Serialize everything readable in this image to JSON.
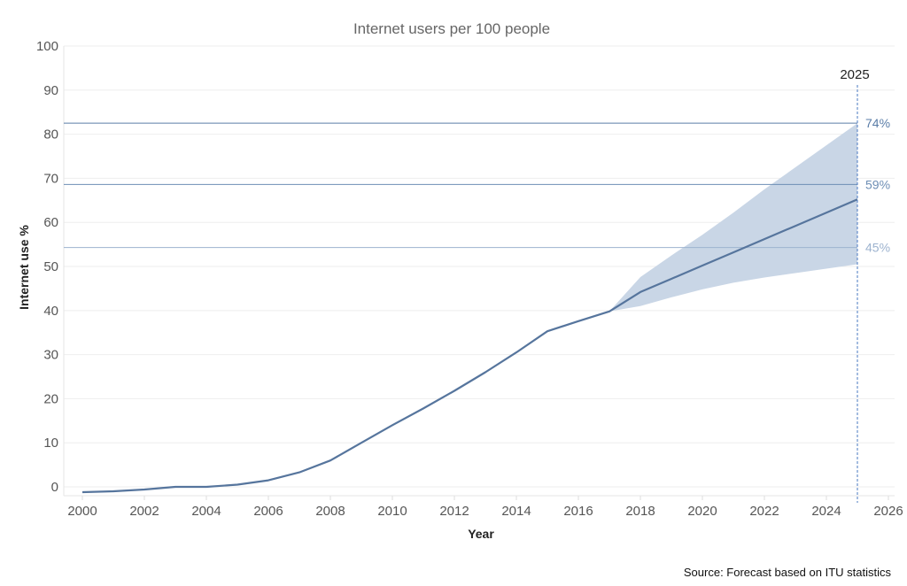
{
  "chart_data": {
    "type": "line",
    "title": "Internet users per 100 people",
    "xlabel": "Year",
    "ylabel": "Internet use %",
    "xlim": [
      1999.4,
      2026.2
    ],
    "ylim": [
      -2,
      100
    ],
    "x_ticks": [
      "2000",
      "2002",
      "2004",
      "2006",
      "2008",
      "2010",
      "2012",
      "2014",
      "2016",
      "2018",
      "2020",
      "2022",
      "2024",
      "2026"
    ],
    "y_ticks": [
      "0",
      "10",
      "20",
      "30",
      "40",
      "50",
      "60",
      "70",
      "80",
      "90",
      "100"
    ],
    "grid": "horizontal",
    "series": [
      {
        "values": [
          [
            2000,
            -1.2
          ],
          [
            2001,
            -1.0
          ],
          [
            2002,
            -0.6
          ],
          [
            2003,
            0.0
          ],
          [
            2004,
            0.0
          ],
          [
            2005,
            0.5
          ],
          [
            2006,
            1.5
          ],
          [
            2007,
            3.3
          ],
          [
            2008,
            6.0
          ],
          [
            2009,
            10.0
          ],
          [
            2010,
            14.0
          ],
          [
            2011,
            17.8
          ],
          [
            2012,
            21.8
          ],
          [
            2013,
            26.0
          ],
          [
            2014,
            30.5
          ],
          [
            2015,
            35.3
          ],
          [
            2016,
            37.6
          ],
          [
            2017,
            39.8
          ],
          [
            2018,
            44.2
          ],
          [
            2019,
            47.2
          ],
          [
            2020,
            50.2
          ],
          [
            2021,
            53.2
          ],
          [
            2022,
            56.2
          ],
          [
            2023,
            59.2
          ],
          [
            2024,
            62.2
          ],
          [
            2025,
            65.2
          ]
        ]
      }
    ],
    "forecast_band": {
      "x": [
        2017,
        2018,
        2019,
        2020,
        2021,
        2022,
        2023,
        2024,
        2025
      ],
      "upper": [
        39.8,
        47.6,
        52.5,
        57.2,
        62.2,
        67.5,
        72.5,
        77.5,
        82.5
      ],
      "lower": [
        39.8,
        41.0,
        43.0,
        44.8,
        46.3,
        47.5,
        48.5,
        49.5,
        50.5
      ]
    },
    "reference_lines": [
      {
        "y": 82.5,
        "label": "74%",
        "color": "#5a7da8"
      },
      {
        "y": 68.6,
        "label": "59%",
        "color": "#6d8eb5"
      },
      {
        "y": 54.3,
        "label": "45%",
        "color": "#9db3cf"
      }
    ],
    "vertical_marker": {
      "x": 2025,
      "label": "2025"
    },
    "source": "Source: Forecast based on ITU statistics"
  },
  "colors": {
    "line": "#56759d",
    "band": "#c9d6e6",
    "grid": "#eeeeee",
    "marker": "#4a78c2"
  }
}
